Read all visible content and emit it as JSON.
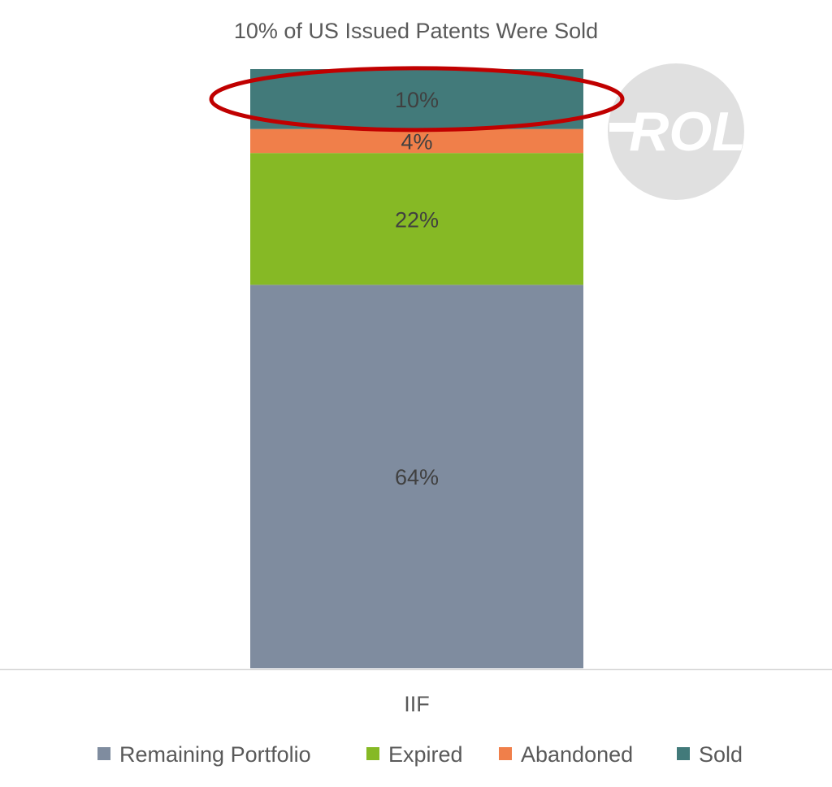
{
  "chart_data": {
    "type": "bar",
    "stacked": true,
    "title": "10% of US Issued Patents Were Sold",
    "categories": [
      "IIF"
    ],
    "series": [
      {
        "name": "Remaining Portfolio",
        "values": [
          64
        ],
        "label": "64%",
        "color": "#7F8C9F"
      },
      {
        "name": "Expired",
        "values": [
          22
        ],
        "label": "22%",
        "color": "#86B925"
      },
      {
        "name": "Abandoned",
        "values": [
          4
        ],
        "label": "4%",
        "color": "#F07F4A"
      },
      {
        "name": "Sold",
        "values": [
          10
        ],
        "label": "10%",
        "color": "#427A7A"
      }
    ],
    "ylim": [
      0,
      100
    ],
    "legend_position": "bottom",
    "grid": false,
    "highlight": {
      "series": "Sold",
      "shape": "ellipse",
      "color": "#C00000"
    }
  },
  "watermark": {
    "text": "ROL",
    "color": "#E0E0E0"
  }
}
